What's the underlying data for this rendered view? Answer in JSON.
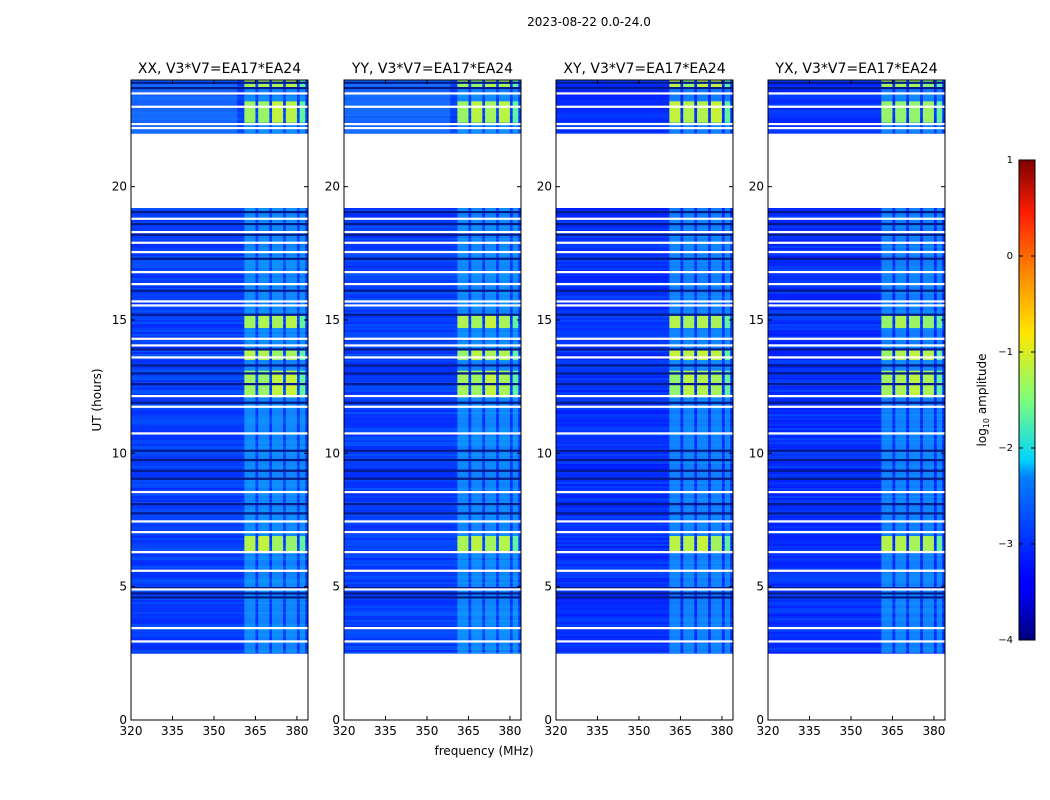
{
  "figure": {
    "title": "2023-08-22 0.0-24.0"
  },
  "chart_data": {
    "type": "heatmap",
    "xlabel": "frequency (MHz)",
    "ylabel": "UT (hours)",
    "xlim": [
      320,
      384
    ],
    "ylim": [
      0,
      24
    ],
    "xticks": [
      320,
      335,
      350,
      365,
      380
    ],
    "yticks": [
      0,
      5,
      10,
      15,
      20
    ],
    "panels": [
      {
        "id": "XX",
        "title": "XX, V3*V7=EA17*EA24",
        "cross": false
      },
      {
        "id": "YY",
        "title": "YY, V3*V7=EA17*EA24",
        "cross": false
      },
      {
        "id": "XY",
        "title": "XY, V3*V7=EA17*EA24",
        "cross": true
      },
      {
        "id": "YX",
        "title": "YX, V3*V7=EA17*EA24",
        "cross": true
      }
    ],
    "data_coverage_hours": [
      [
        2.5,
        19.2
      ],
      [
        22.0,
        24.0
      ]
    ],
    "flagged_gaps_hours": [
      [
        19.2,
        22.0
      ],
      [
        0,
        2.5
      ]
    ],
    "bright_band_mhz": [
      [
        361,
        365
      ],
      [
        366,
        370
      ],
      [
        371,
        375
      ],
      [
        376,
        380
      ],
      [
        381,
        383
      ]
    ],
    "colorbar": {
      "label_prefix": "log",
      "label_sub": "10",
      "label_suffix": " amplitude",
      "min": -4,
      "max": 1,
      "ticks": [
        1,
        0,
        -1,
        -2,
        -3,
        -4
      ],
      "colormap": "jet"
    }
  }
}
